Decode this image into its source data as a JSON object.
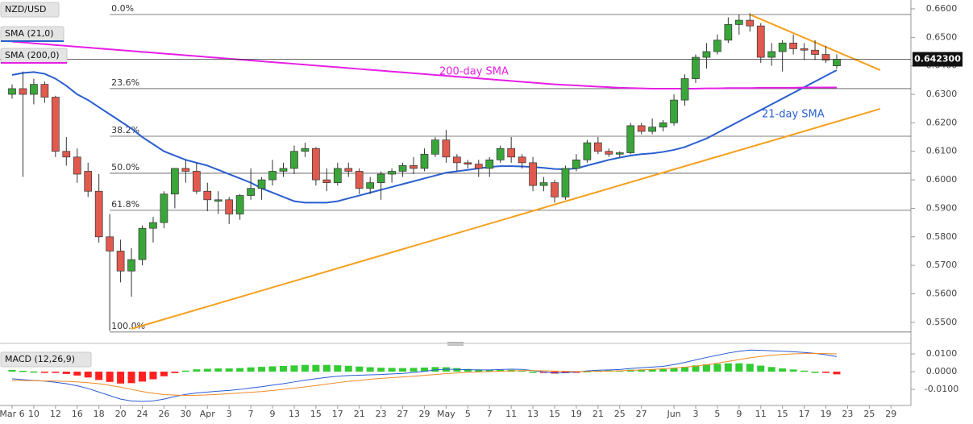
{
  "chart_data": {
    "type": "candlestick",
    "categories": [
      "Mar 6",
      null,
      "10",
      null,
      "12",
      null,
      "16",
      null,
      "18",
      null,
      "20",
      null,
      "24",
      null,
      "26",
      null,
      "30",
      null,
      "Apr",
      null,
      "3",
      null,
      "7",
      null,
      "9",
      null,
      "13",
      null,
      "15",
      null,
      "17",
      null,
      "21",
      null,
      "23",
      null,
      "27",
      null,
      "29",
      null,
      "May",
      null,
      "5",
      null,
      "7",
      null,
      "11",
      null,
      "13",
      null,
      "15",
      null,
      "19",
      null,
      "21",
      null,
      "25",
      null,
      "27",
      null,
      null,
      "Jun",
      null,
      "3",
      null,
      "5",
      null,
      "9",
      null,
      "11",
      null,
      "15",
      null,
      "17",
      null,
      "19",
      null,
      "23",
      null,
      "25",
      null,
      "29"
    ],
    "series": [
      {
        "name": "NZD/USD",
        "up_color": "#3aa53a",
        "down_color": "#e05a4e",
        "open": [
          0.63,
          0.632,
          0.63,
          0.6335,
          0.629,
          0.61,
          0.608,
          0.603,
          0.596,
          0.58,
          0.575,
          0.568,
          0.572,
          0.583,
          0.585,
          0.595,
          0.604,
          0.603,
          0.596,
          0.5925,
          0.593,
          0.588,
          0.5945,
          0.597,
          0.6,
          0.603,
          0.604,
          0.61,
          0.611,
          0.6,
          0.599,
          0.604,
          0.603,
          0.597,
          0.599,
          0.602,
          0.603,
          0.605,
          0.604,
          0.609,
          0.614,
          0.608,
          0.606,
          0.6055,
          0.604,
          0.607,
          0.611,
          0.608,
          0.606,
          0.598,
          0.599,
          0.594,
          0.604,
          0.607,
          0.613,
          0.61,
          0.609,
          0.6095,
          0.619,
          0.617,
          0.6185,
          0.62,
          0.628,
          0.6355,
          0.643,
          0.645,
          0.649,
          0.6545,
          0.656,
          0.654,
          0.643,
          0.645,
          0.648,
          0.646,
          0.6455,
          0.644,
          0.64,
          null,
          null,
          null,
          null,
          null
        ],
        "high": [
          0.6335,
          0.638,
          0.6355,
          0.6345,
          0.6295,
          0.615,
          0.611,
          0.606,
          0.602,
          0.588,
          0.579,
          0.576,
          0.584,
          0.587,
          0.596,
          0.604,
          0.607,
          0.606,
          0.599,
          0.596,
          0.594,
          0.595,
          0.604,
          0.601,
          0.607,
          0.606,
          0.612,
          0.613,
          0.6115,
          0.604,
          0.606,
          0.606,
          0.604,
          0.601,
          0.603,
          0.604,
          0.606,
          0.608,
          0.611,
          0.615,
          0.6175,
          0.609,
          0.607,
          0.607,
          0.608,
          0.612,
          0.615,
          0.609,
          0.608,
          0.601,
          0.6,
          0.605,
          0.609,
          0.614,
          0.615,
          0.611,
          0.61,
          0.62,
          0.62,
          0.6215,
          0.621,
          0.63,
          0.637,
          0.644,
          0.648,
          0.651,
          0.657,
          0.658,
          0.6585,
          0.655,
          0.648,
          0.649,
          0.651,
          0.648,
          0.649,
          0.647,
          0.644,
          null,
          null,
          null,
          null,
          null
        ],
        "low": [
          0.6285,
          0.601,
          0.6265,
          0.627,
          0.608,
          0.605,
          0.599,
          0.594,
          0.578,
          0.547,
          0.564,
          0.559,
          0.57,
          0.578,
          0.583,
          0.59,
          0.599,
          0.595,
          0.589,
          0.588,
          0.5845,
          0.586,
          0.593,
          0.593,
          0.598,
          0.601,
          0.602,
          0.608,
          0.598,
          0.596,
          0.598,
          0.601,
          0.595,
          0.595,
          0.593,
          0.599,
          0.601,
          0.602,
          0.603,
          0.608,
          0.606,
          0.603,
          0.604,
          0.601,
          0.601,
          0.606,
          0.606,
          0.604,
          0.596,
          0.596,
          0.592,
          0.593,
          0.603,
          0.606,
          0.609,
          0.608,
          0.608,
          0.609,
          0.616,
          0.616,
          0.617,
          0.619,
          0.626,
          0.634,
          0.639,
          0.644,
          0.648,
          0.651,
          0.652,
          0.641,
          0.64,
          0.638,
          0.644,
          0.642,
          0.642,
          0.641,
          0.639,
          null,
          null,
          null,
          null,
          null
        ],
        "close": [
          0.632,
          0.63,
          0.6335,
          0.629,
          0.61,
          0.608,
          0.602,
          0.596,
          0.58,
          0.575,
          0.568,
          0.572,
          0.583,
          0.585,
          0.595,
          0.604,
          0.603,
          0.596,
          0.593,
          0.593,
          0.588,
          0.5945,
          0.597,
          0.6,
          0.603,
          0.604,
          0.61,
          0.611,
          0.6,
          0.599,
          0.604,
          0.603,
          0.597,
          0.599,
          0.602,
          0.603,
          0.605,
          0.604,
          0.609,
          0.614,
          0.608,
          0.606,
          0.6055,
          0.604,
          0.607,
          0.611,
          0.608,
          0.606,
          0.598,
          0.599,
          0.594,
          0.604,
          0.607,
          0.613,
          0.61,
          0.609,
          0.6095,
          0.619,
          0.617,
          0.6185,
          0.62,
          0.628,
          0.6355,
          0.643,
          0.645,
          0.649,
          0.6545,
          0.656,
          0.654,
          0.643,
          0.645,
          0.648,
          0.646,
          0.6455,
          0.644,
          0.642,
          0.6423,
          null,
          null,
          null,
          null,
          null
        ]
      }
    ],
    "overlays": [
      {
        "name": "SMA (21,0)",
        "color": "#2a5fd0",
        "values": [
          0.6368,
          0.6375,
          0.6378,
          0.6372,
          0.6355,
          0.633,
          0.63,
          0.628,
          0.6255,
          0.623,
          0.6205,
          0.618,
          0.615,
          0.6125,
          0.61,
          0.6085,
          0.607,
          0.606,
          0.605,
          0.6035,
          0.602,
          0.6005,
          0.599,
          0.597,
          0.5955,
          0.594,
          0.5925,
          0.592,
          0.592,
          0.592,
          0.5925,
          0.5935,
          0.5945,
          0.5955,
          0.5965,
          0.5975,
          0.5985,
          0.5995,
          0.6005,
          0.6015,
          0.6025,
          0.603,
          0.6035,
          0.604,
          0.6045,
          0.6048,
          0.6048,
          0.6047,
          0.6045,
          0.6042,
          0.6038,
          0.6037,
          0.604,
          0.605,
          0.606,
          0.607,
          0.6078,
          0.6085,
          0.609,
          0.6093,
          0.6098,
          0.6105,
          0.6115,
          0.613,
          0.6145,
          0.6165,
          0.6185,
          0.6205,
          0.6225,
          0.6245,
          0.6265,
          0.6285,
          0.6305,
          0.6325,
          0.6345,
          0.6365,
          0.6385,
          null,
          null,
          null,
          null,
          null
        ]
      },
      {
        "name": "SMA (200,0)",
        "color": "#e61ee6",
        "values": [
          0.6485,
          0.6482,
          0.6479,
          0.6476,
          0.6473,
          0.647,
          0.6467,
          0.6464,
          0.6461,
          0.6458,
          0.6455,
          0.6452,
          0.6449,
          0.6446,
          0.6443,
          0.644,
          0.6437,
          0.6434,
          0.6431,
          0.6428,
          0.6425,
          0.6422,
          0.6419,
          0.6416,
          0.6413,
          0.641,
          0.6407,
          0.6404,
          0.6401,
          0.6398,
          0.6395,
          0.6392,
          0.6389,
          0.6386,
          0.6383,
          0.638,
          0.6377,
          0.6374,
          0.6371,
          0.6368,
          0.6365,
          0.6362,
          0.6359,
          0.6356,
          0.6353,
          0.635,
          0.6347,
          0.6344,
          0.6341,
          0.6338,
          0.6335,
          0.6333,
          0.6331,
          0.6329,
          0.6327,
          0.6325,
          0.6323,
          0.6322,
          0.6321,
          0.632,
          0.632,
          0.632,
          0.632,
          0.632,
          0.6321,
          0.6321,
          0.6322,
          0.6322,
          0.6322,
          0.6323,
          0.6323,
          0.6323,
          0.6323,
          0.6324,
          0.6324,
          0.6324,
          0.6324,
          null,
          null,
          null,
          null,
          null
        ]
      }
    ],
    "ylim": [
      0.5443,
      0.6631
    ],
    "yticks": [
      {
        "value": 0.66,
        "label": "0.6600"
      },
      {
        "value": 0.65,
        "label": "0.6500"
      },
      {
        "value": 0.64,
        "label": "0.6400"
      },
      {
        "value": 0.63,
        "label": "0.6300"
      },
      {
        "value": 0.62,
        "label": "0.6200"
      },
      {
        "value": 0.61,
        "label": "0.6100"
      },
      {
        "value": 0.6,
        "label": "0.6000"
      },
      {
        "value": 0.59,
        "label": "0.5900"
      },
      {
        "value": 0.58,
        "label": "0.5800"
      },
      {
        "value": 0.57,
        "label": "0.5700"
      },
      {
        "value": 0.56,
        "label": "0.5600"
      },
      {
        "value": 0.55,
        "label": "0.5500"
      }
    ],
    "grid": false,
    "last_price": {
      "value": 0.6423,
      "label": "0.642300"
    },
    "fib_levels": [
      {
        "label": "0.0%",
        "value": 0.658
      },
      {
        "label": "23.6%",
        "value": 0.632
      },
      {
        "label": "38.2%",
        "value": 0.6153
      },
      {
        "label": "50.0%",
        "value": 0.6023
      },
      {
        "label": "61.8%",
        "value": 0.5893
      },
      {
        "label": "100.0%",
        "value": 0.5466
      }
    ],
    "trendlines": [
      {
        "color": "#f5a01e",
        "x": [
          11,
          80
        ],
        "values": [
          0.5477,
          0.6249
        ]
      },
      {
        "color": "#f5a01e",
        "x": [
          68,
          80
        ],
        "values": [
          0.658,
          0.6385
        ]
      }
    ],
    "annotations": [
      {
        "text": "200-day SMA",
        "color": "#e61ee6"
      },
      {
        "text": "21-day SMA",
        "color": "#2a5fd0"
      }
    ],
    "macd": {
      "name": "MACD (12,26,9)",
      "ylim": [
        -0.0177,
        0.0132
      ],
      "yticks": [
        {
          "value": 0.01,
          "label": "0.0100"
        },
        {
          "value": 0,
          "label": "0.0000"
        },
        {
          "value": -0.01,
          "label": "-0.0100"
        }
      ],
      "macd_line": {
        "color": "#2a5ad6",
        "values": [
          -0.004,
          -0.0045,
          -0.005,
          -0.0053,
          -0.006,
          -0.0068,
          -0.008,
          -0.0095,
          -0.0115,
          -0.0135,
          -0.0155,
          -0.0165,
          -0.0168,
          -0.0165,
          -0.0155,
          -0.014,
          -0.0128,
          -0.012,
          -0.0115,
          -0.011,
          -0.0106,
          -0.01,
          -0.0092,
          -0.0085,
          -0.0076,
          -0.0068,
          -0.0058,
          -0.0048,
          -0.004,
          -0.0032,
          -0.0026,
          -0.0022,
          -0.002,
          -0.0018,
          -0.0016,
          -0.0013,
          -0.001,
          -0.0005,
          0.0002,
          0.001,
          0.0014,
          0.0013,
          0.0011,
          0.001,
          0.001,
          0.0012,
          0.0014,
          0.0013,
          0.0006,
          -0.0002,
          -0.0008,
          -0.0006,
          -0.0002,
          0.0004,
          0.0008,
          0.001,
          0.0012,
          0.0018,
          0.0022,
          0.0026,
          0.003,
          0.004,
          0.0052,
          0.0066,
          0.008,
          0.0092,
          0.0105,
          0.0115,
          0.0122,
          0.012,
          0.0118,
          0.0115,
          0.0112,
          0.0108,
          0.0103,
          0.0095,
          0.0085,
          null,
          null,
          null,
          null,
          null
        ]
      },
      "signal_line": {
        "color": "#f08a24",
        "values": [
          -0.005,
          -0.005,
          -0.0051,
          -0.0052,
          -0.0053,
          -0.0055,
          -0.0058,
          -0.0062,
          -0.0068,
          -0.0077,
          -0.0088,
          -0.01,
          -0.0112,
          -0.0122,
          -0.0129,
          -0.0132,
          -0.0134,
          -0.0133,
          -0.0131,
          -0.0128,
          -0.0124,
          -0.012,
          -0.0116,
          -0.0112,
          -0.0106,
          -0.01,
          -0.0093,
          -0.0086,
          -0.0078,
          -0.007,
          -0.0062,
          -0.0055,
          -0.0049,
          -0.0043,
          -0.0038,
          -0.0034,
          -0.003,
          -0.0026,
          -0.0021,
          -0.0016,
          -0.0011,
          -0.0007,
          -0.0004,
          -0.0002,
          0,
          0.0002,
          0.0004,
          0.0006,
          0.0006,
          0.0005,
          0.0003,
          0.0002,
          0.0001,
          0.0001,
          0.0002,
          0.0003,
          0.0005,
          0.0007,
          0.001,
          0.0013,
          0.0016,
          0.002,
          0.0025,
          0.0031,
          0.0039,
          0.0048,
          0.0058,
          0.0068,
          0.0078,
          0.0086,
          0.0092,
          0.0097,
          0.01,
          0.0102,
          0.0103,
          0.0102,
          0.01,
          null,
          null,
          null,
          null,
          null
        ]
      },
      "histogram": {
        "up_color": "#33cc33",
        "down_color": "#ff2020",
        "values": [
          0.001,
          0.0005,
          0.0001,
          -0.0001,
          -0.0007,
          -0.0013,
          -0.0022,
          -0.0033,
          -0.0047,
          -0.0058,
          -0.0067,
          -0.0065,
          -0.0056,
          -0.0043,
          -0.0026,
          -0.0008,
          0.0006,
          0.0013,
          0.0016,
          0.0018,
          0.0018,
          0.002,
          0.0024,
          0.0027,
          0.003,
          0.0032,
          0.0035,
          0.0038,
          0.0038,
          0.0038,
          0.0036,
          0.0033,
          0.0029,
          0.0025,
          0.0022,
          0.0021,
          0.002,
          0.0021,
          0.0023,
          0.0026,
          0.0025,
          0.002,
          0.0015,
          0.0012,
          0.001,
          0.001,
          0.001,
          0.0007,
          0,
          -0.0007,
          -0.0011,
          -0.0008,
          -0.0003,
          0.0003,
          0.0006,
          0.0007,
          0.0007,
          0.0011,
          0.0012,
          0.0013,
          0.0014,
          0.002,
          0.0027,
          0.0035,
          0.0041,
          0.0044,
          0.0047,
          0.0047,
          0.0044,
          0.0034,
          0.0026,
          0.0018,
          0.0012,
          0.0006,
          0,
          -0.0007,
          -0.0015,
          null,
          null,
          null,
          null,
          null
        ]
      }
    }
  }
}
